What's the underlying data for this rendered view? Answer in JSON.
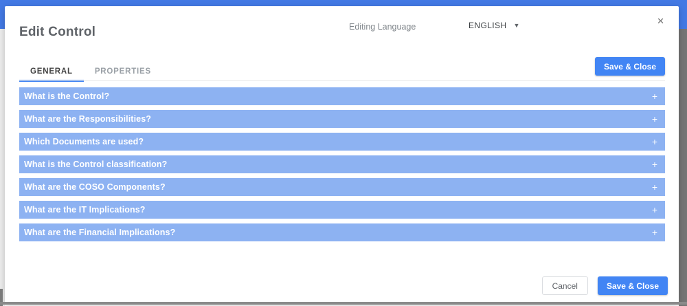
{
  "colors": {
    "header_blue": "#4379e4",
    "accent_blue": "#4285f4",
    "accordion_blue": "#8db2f2",
    "border_gray": "#8a8a8a",
    "side_gray": "#757575"
  },
  "modal": {
    "title": "Edit Control",
    "editing_language_label": "Editing Language",
    "language_select": {
      "value": "ENGLISH",
      "caret_icon": "▼"
    },
    "close_icon": "✕",
    "tabs": [
      {
        "label": "GENERAL",
        "active": true
      },
      {
        "label": "PROPERTIES",
        "active": false
      }
    ],
    "header_actions": {
      "save_close_label": "Save & Close"
    },
    "section_toggle_icon": "+",
    "sections": [
      {
        "label": "What is the Control?"
      },
      {
        "label": "What are the Responsibilities?"
      },
      {
        "label": "Which Documents are used?"
      },
      {
        "label": "What is the Control classification?"
      },
      {
        "label": "What are the COSO Components?"
      },
      {
        "label": "What are the IT Implications?"
      },
      {
        "label": "What are the Financial Implications?"
      }
    ],
    "footer": {
      "cancel_label": "Cancel",
      "save_close_label": "Save & Close"
    }
  }
}
